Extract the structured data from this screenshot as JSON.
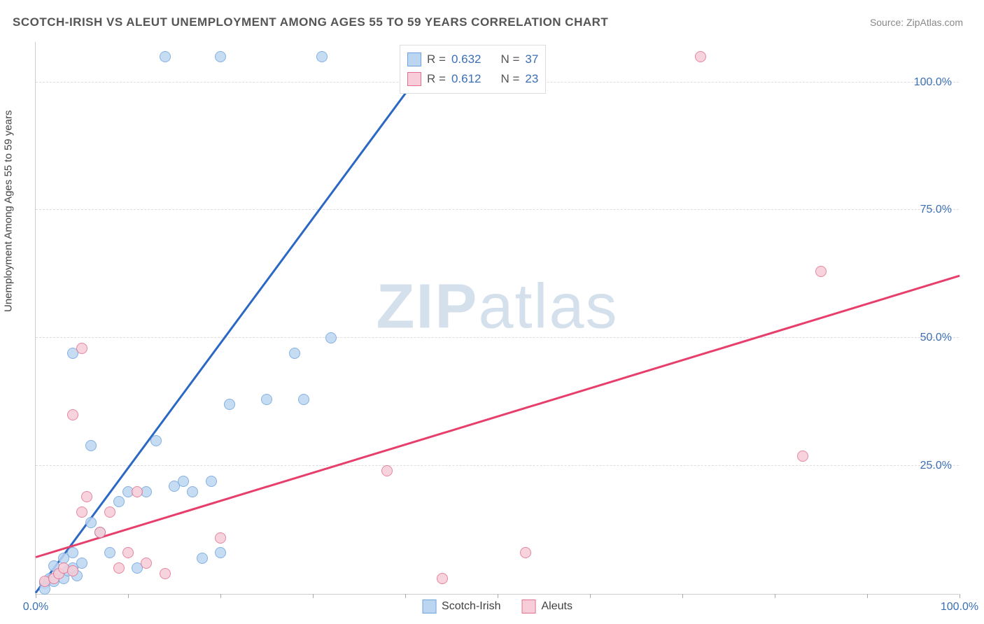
{
  "title": "SCOTCH-IRISH VS ALEUT UNEMPLOYMENT AMONG AGES 55 TO 59 YEARS CORRELATION CHART",
  "source": "Source: ZipAtlas.com",
  "watermark_bold": "ZIP",
  "watermark_light": "atlas",
  "y_axis_label": "Unemployment Among Ages 55 to 59 years",
  "chart": {
    "type": "scatter",
    "xlim": [
      0,
      100
    ],
    "ylim": [
      0,
      108
    ],
    "x_ticks": [
      0,
      10,
      20,
      30,
      40,
      50,
      60,
      70,
      80,
      90,
      100
    ],
    "x_tick_labels": {
      "0": "0.0%",
      "100": "100.0%"
    },
    "y_gridlines": [
      25,
      50,
      75,
      100
    ],
    "y_tick_labels": [
      "25.0%",
      "50.0%",
      "75.0%",
      "100.0%"
    ],
    "background_color": "#ffffff",
    "grid_color": "#dddddd",
    "axis_color": "#cccccc",
    "tick_label_color": "#3b6fb5",
    "marker_radius": 8,
    "marker_stroke_width": 1.5,
    "trend_line_width": 3,
    "series": [
      {
        "name": "Scotch-Irish",
        "fill_color": "#bcd6f2",
        "stroke_color": "#6fa3de",
        "line_color": "#2b68c4",
        "R": "0.632",
        "N": "37",
        "trend_start": [
          0,
          -2
        ],
        "trend_end": [
          41,
          100
        ],
        "points": [
          [
            1,
            2
          ],
          [
            1.5,
            3
          ],
          [
            2,
            2.5
          ],
          [
            2.5,
            4
          ],
          [
            3,
            3
          ],
          [
            3.5,
            4.5
          ],
          [
            4,
            5
          ],
          [
            4.5,
            3.5
          ],
          [
            5,
            6
          ],
          [
            2,
            5.5
          ],
          [
            3,
            7
          ],
          [
            4,
            8
          ],
          [
            6,
            14
          ],
          [
            7,
            12
          ],
          [
            8,
            8
          ],
          [
            9,
            18
          ],
          [
            10,
            20
          ],
          [
            11,
            5
          ],
          [
            12,
            20
          ],
          [
            13,
            30
          ],
          [
            6,
            29
          ],
          [
            4,
            47
          ],
          [
            15,
            21
          ],
          [
            16,
            22
          ],
          [
            17,
            20
          ],
          [
            18,
            7
          ],
          [
            19,
            22
          ],
          [
            20,
            8
          ],
          [
            21,
            37
          ],
          [
            25,
            38
          ],
          [
            28,
            47
          ],
          [
            29,
            38
          ],
          [
            32,
            50
          ],
          [
            14,
            105
          ],
          [
            20,
            105
          ],
          [
            31,
            105
          ],
          [
            1,
            1
          ]
        ]
      },
      {
        "name": "Aleuts",
        "fill_color": "#f6cdd8",
        "stroke_color": "#e2718f",
        "line_color": "#e83e6b",
        "R": "0.612",
        "N": "23",
        "trend_start": [
          0,
          7
        ],
        "trend_end": [
          100,
          62
        ],
        "points": [
          [
            1,
            2.5
          ],
          [
            2,
            3
          ],
          [
            2.5,
            4
          ],
          [
            3,
            5
          ],
          [
            4,
            4.5
          ],
          [
            5,
            16
          ],
          [
            5.5,
            19
          ],
          [
            7,
            12
          ],
          [
            8,
            16
          ],
          [
            9,
            5
          ],
          [
            10,
            8
          ],
          [
            11,
            20
          ],
          [
            12,
            6
          ],
          [
            20,
            11
          ],
          [
            14,
            4
          ],
          [
            4,
            35
          ],
          [
            5,
            48
          ],
          [
            38,
            24
          ],
          [
            44,
            3
          ],
          [
            53,
            8
          ],
          [
            72,
            105
          ],
          [
            83,
            27
          ],
          [
            85,
            63
          ]
        ]
      }
    ]
  },
  "legend_top": {
    "r_label": "R",
    "n_label": "N",
    "eq": "="
  },
  "legend_bottom": [
    {
      "label": "Scotch-Irish",
      "fill": "#bcd6f2",
      "stroke": "#6fa3de"
    },
    {
      "label": "Aleuts",
      "fill": "#f6cdd8",
      "stroke": "#e2718f"
    }
  ]
}
